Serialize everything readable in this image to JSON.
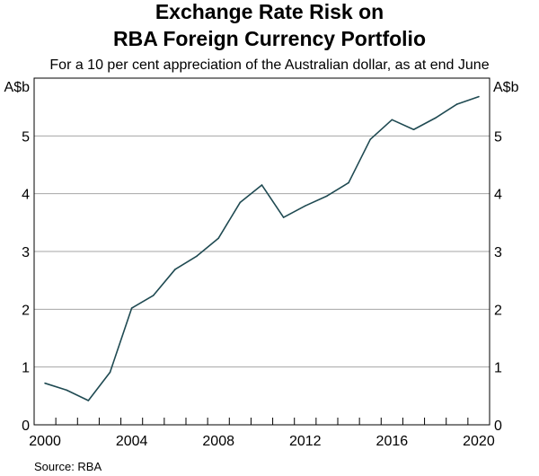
{
  "chart_data": {
    "type": "line",
    "title": [
      "Exchange Rate Risk on",
      "RBA Foreign Currency Portfolio"
    ],
    "subtitle": "For a 10 per cent appreciation of the Australian dollar, as at end June",
    "ylabel_left": "A$b",
    "ylabel_right": "A$b",
    "source": "Source:   RBA",
    "ylim": [
      0,
      6
    ],
    "yticks": [
      0,
      1,
      2,
      3,
      4,
      5
    ],
    "xlim": [
      2000,
      2020
    ],
    "xtick_labels": [
      "2000",
      "2004",
      "2008",
      "2012",
      "2016",
      "2020"
    ],
    "grid": true,
    "line_color": "#1f4a52",
    "x": [
      2000,
      2001,
      2002,
      2003,
      2004,
      2005,
      2006,
      2007,
      2008,
      2009,
      2010,
      2011,
      2012,
      2013,
      2014,
      2015,
      2016,
      2017,
      2018,
      2019,
      2020
    ],
    "values": [
      0.72,
      0.6,
      0.42,
      0.91,
      2.02,
      2.24,
      2.69,
      2.92,
      3.23,
      3.85,
      4.15,
      3.59,
      3.79,
      3.96,
      4.19,
      4.94,
      5.28,
      5.11,
      5.31,
      5.55,
      5.68
    ]
  }
}
